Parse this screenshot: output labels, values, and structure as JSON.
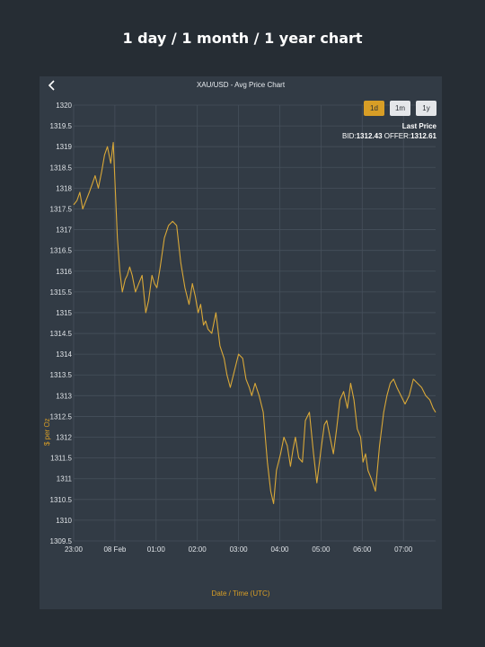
{
  "page_heading": "1 day / 1 month / 1 year chart",
  "panel": {
    "title": "XAU/USD - Avg Price Chart",
    "back_icon": "chevron-left-icon"
  },
  "range_buttons": [
    {
      "label": "1d",
      "active": true
    },
    {
      "label": "1m",
      "active": false
    },
    {
      "label": "1y",
      "active": false
    }
  ],
  "last_price": {
    "label": "Last Price",
    "bid_label": "BID:",
    "bid": "1312.43",
    "offer_label": " OFFER:",
    "offer": "1312.61"
  },
  "colors": {
    "accent": "#d89e26",
    "line": "#d9a838",
    "panel_bg": "#323b45",
    "grid": "#46505b",
    "page_bg": "#262d34"
  },
  "chart_data": {
    "type": "line",
    "title": "",
    "xlabel": "Date / Time (UTC)",
    "ylabel": "$ per Oz",
    "ylim": [
      1309.5,
      1320
    ],
    "xlim": [
      0,
      8.78
    ],
    "grid": true,
    "x_unit": "hours after 23:00 UTC",
    "yticks": [
      "1309.5",
      "1310",
      "1310.5",
      "1311",
      "1311.5",
      "1312",
      "1312.5",
      "1313",
      "1313.5",
      "1314",
      "1314.5",
      "1315",
      "1315.5",
      "1316",
      "1316.5",
      "1317",
      "1317.5",
      "1318",
      "1318.5",
      "1319",
      "1319.5",
      "1320"
    ],
    "xticks": [
      {
        "label": "23:00",
        "x": 0
      },
      {
        "label": "08 Feb",
        "x": 1
      },
      {
        "label": "01:00",
        "x": 2
      },
      {
        "label": "02:00",
        "x": 3
      },
      {
        "label": "03:00",
        "x": 4
      },
      {
        "label": "04:00",
        "x": 5
      },
      {
        "label": "05:00",
        "x": 6
      },
      {
        "label": "06:00",
        "x": 7
      },
      {
        "label": "07:00",
        "x": 8
      }
    ],
    "series": [
      {
        "x": [
          0,
          0.08,
          0.15,
          0.22,
          0.3,
          0.38,
          0.45,
          0.52,
          0.6,
          0.68,
          0.75,
          0.82,
          0.9,
          0.96,
          1.0,
          1.06,
          1.12,
          1.18,
          1.25,
          1.3,
          1.36,
          1.42,
          1.5,
          1.58,
          1.66,
          1.75,
          1.82,
          1.9,
          1.96,
          2.02,
          2.1,
          2.2,
          2.3,
          2.4,
          2.5,
          2.6,
          2.7,
          2.8,
          2.88,
          2.95,
          3.02,
          3.08,
          3.15,
          3.2,
          3.26,
          3.35,
          3.45,
          3.55,
          3.65,
          3.72,
          3.8,
          3.9,
          4.0,
          4.1,
          4.18,
          4.26,
          4.32,
          4.4,
          4.5,
          4.6,
          4.7,
          4.78,
          4.85,
          4.92,
          5.02,
          5.1,
          5.18,
          5.26,
          5.32,
          5.38,
          5.46,
          5.55,
          5.62,
          5.72,
          5.82,
          5.9,
          6.0,
          6.08,
          6.14,
          6.22,
          6.3,
          6.38,
          6.46,
          6.55,
          6.64,
          6.72,
          6.8,
          6.88,
          6.96,
          7.02,
          7.08,
          7.14,
          7.22,
          7.32,
          7.42,
          7.52,
          7.6,
          7.68,
          7.76,
          7.84,
          7.94,
          8.04,
          8.14,
          8.24,
          8.34,
          8.44,
          8.54,
          8.64,
          8.72,
          8.78
        ],
        "y": [
          1317.6,
          1317.7,
          1317.9,
          1317.5,
          1317.7,
          1317.9,
          1318.1,
          1318.3,
          1318.0,
          1318.4,
          1318.8,
          1319.0,
          1318.6,
          1319.1,
          1318.2,
          1316.8,
          1316.0,
          1315.5,
          1315.8,
          1315.9,
          1316.1,
          1315.9,
          1315.5,
          1315.7,
          1315.9,
          1315.0,
          1315.3,
          1315.9,
          1315.7,
          1315.6,
          1316.1,
          1316.8,
          1317.1,
          1317.2,
          1317.1,
          1316.2,
          1315.6,
          1315.2,
          1315.7,
          1315.4,
          1315.0,
          1315.2,
          1314.7,
          1314.8,
          1314.6,
          1314.5,
          1315.0,
          1314.2,
          1313.9,
          1313.5,
          1313.2,
          1313.6,
          1314.0,
          1313.9,
          1313.4,
          1313.2,
          1313.0,
          1313.3,
          1313.0,
          1312.6,
          1311.4,
          1310.7,
          1310.4,
          1311.2,
          1311.6,
          1312.0,
          1311.8,
          1311.3,
          1311.7,
          1312.0,
          1311.5,
          1311.4,
          1312.4,
          1312.6,
          1311.6,
          1310.9,
          1311.7,
          1312.3,
          1312.4,
          1312.0,
          1311.6,
          1312.2,
          1312.9,
          1313.1,
          1312.7,
          1313.3,
          1312.9,
          1312.2,
          1312.0,
          1311.4,
          1311.6,
          1311.2,
          1311.0,
          1310.7,
          1311.8,
          1312.6,
          1313.0,
          1313.3,
          1313.4,
          1313.2,
          1313.0,
          1312.8,
          1313.0,
          1313.4,
          1313.3,
          1313.2,
          1313.0,
          1312.9,
          1312.7,
          1312.6
        ]
      }
    ]
  }
}
